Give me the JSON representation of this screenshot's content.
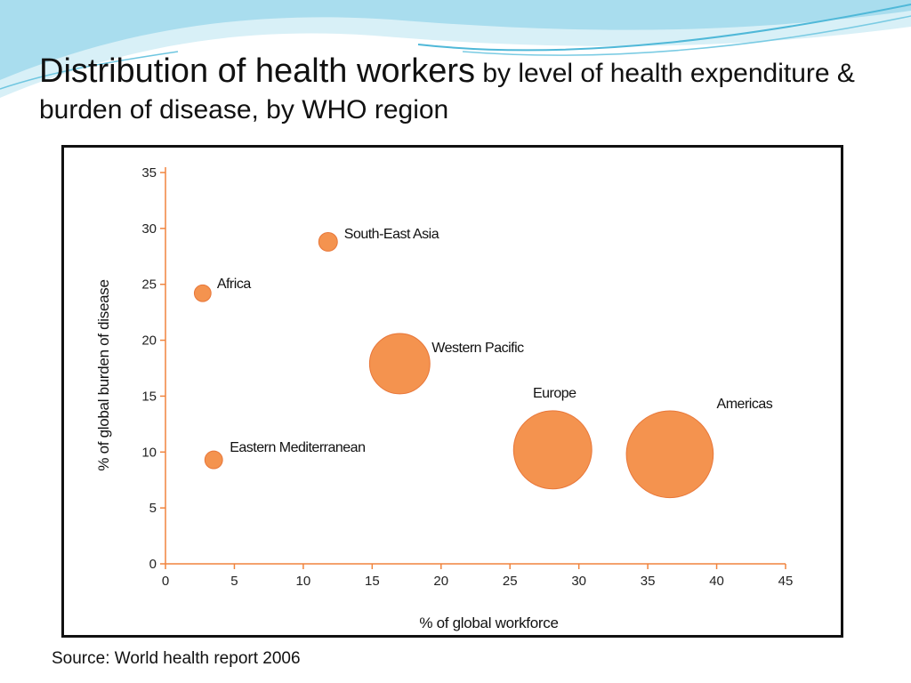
{
  "slide": {
    "title_main": "Distribution of health workers",
    "title_rest": " by level of health expenditure & burden of disease, by WHO region",
    "source": "Source: World health report 2006"
  },
  "colors": {
    "bubble_fill": "#F4934F",
    "bubble_stroke": "#E8773A",
    "axis": "#F0843E",
    "swoosh_light": "#BFE6F2",
    "swoosh_dark": "#5FC3E0"
  },
  "chart_data": {
    "type": "scatter",
    "xlabel": "% of global workforce",
    "ylabel": "% of global burden of disease",
    "xlim": [
      0,
      45
    ],
    "ylim": [
      0,
      35
    ],
    "xticks": [
      0,
      5,
      10,
      15,
      20,
      25,
      30,
      35,
      40,
      45
    ],
    "yticks": [
      0,
      5,
      10,
      15,
      20,
      25,
      30,
      35
    ],
    "grid": false,
    "points": [
      {
        "label": "South-East Asia",
        "x": 11.8,
        "y": 28.8,
        "size": 1
      },
      {
        "label": "Africa",
        "x": 2.7,
        "y": 24.2,
        "size": 0.8
      },
      {
        "label": "Western Pacific",
        "x": 17.0,
        "y": 17.9,
        "size": 2.8
      },
      {
        "label": "Eastern Mediterranean",
        "x": 3.5,
        "y": 9.3,
        "size": 0.9
      },
      {
        "label": "Europe",
        "x": 28.1,
        "y": 10.2,
        "size": 4.7
      },
      {
        "label": "Americas",
        "x": 36.6,
        "y": 9.8,
        "size": 5.8
      }
    ]
  }
}
